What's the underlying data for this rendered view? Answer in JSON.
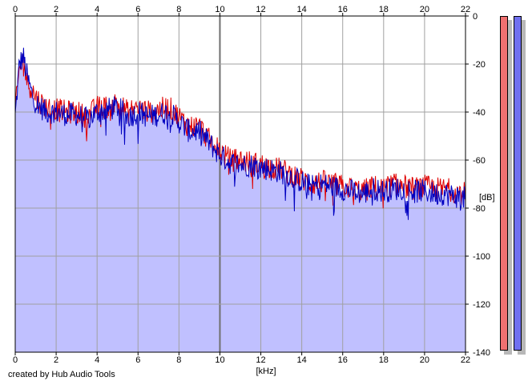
{
  "chart_data": {
    "type": "area",
    "title": "",
    "xlabel": "[kHz]",
    "ylabel": "[dB]",
    "xlim": [
      0,
      22
    ],
    "ylim": [
      -140,
      0
    ],
    "x_ticks": [
      0,
      2,
      4,
      6,
      8,
      10,
      12,
      14,
      16,
      18,
      20,
      22
    ],
    "y_ticks": [
      0,
      -20,
      -40,
      -60,
      -80,
      -100,
      -120,
      -140
    ],
    "grid": true,
    "fill_color": "#c0c0ff",
    "series": [
      {
        "color": "#e00000",
        "x": [
          0,
          0.2,
          0.4,
          0.6,
          0.8,
          1,
          1.5,
          2,
          2.5,
          3,
          3.5,
          4,
          4.5,
          5,
          5.5,
          6,
          6.5,
          7,
          7.5,
          8,
          8.5,
          9,
          9.5,
          10,
          10.5,
          11,
          11.5,
          12,
          12.5,
          13,
          13.5,
          14,
          14.5,
          15,
          15.5,
          16,
          16.5,
          17,
          17.5,
          18,
          18.5,
          19,
          19.5,
          20,
          20.5,
          21,
          21.5,
          22
        ],
        "values": [
          -40,
          -22,
          -18,
          -28,
          -30,
          -34,
          -38,
          -39,
          -40,
          -40,
          -42,
          -38,
          -38,
          -36,
          -40,
          -38,
          -40,
          -39,
          -38,
          -42,
          -46,
          -46,
          -52,
          -56,
          -60,
          -60,
          -61,
          -62,
          -63,
          -64,
          -66,
          -68,
          -70,
          -69,
          -70,
          -71,
          -72,
          -73,
          -71,
          -72,
          -70,
          -71,
          -72,
          -71,
          -72,
          -72,
          -73,
          -74
        ]
      },
      {
        "color": "#0000c0",
        "x": [
          0,
          0.2,
          0.4,
          0.6,
          0.8,
          1,
          1.5,
          2,
          2.5,
          3,
          3.5,
          4,
          4.5,
          5,
          5.5,
          6,
          6.5,
          7,
          7.5,
          8,
          8.5,
          9,
          9.5,
          10,
          10.5,
          11,
          11.5,
          12,
          12.5,
          13,
          13.5,
          14,
          14.5,
          15,
          15.5,
          16,
          16.5,
          17,
          17.5,
          18,
          18.5,
          19,
          19.5,
          20,
          20.5,
          21,
          21.5,
          22
        ],
        "values": [
          -42,
          -20,
          -17,
          -26,
          -32,
          -36,
          -40,
          -40,
          -41,
          -41,
          -43,
          -40,
          -39,
          -38,
          -42,
          -40,
          -42,
          -41,
          -40,
          -44,
          -48,
          -48,
          -53,
          -58,
          -61,
          -62,
          -62,
          -63,
          -64,
          -65,
          -67,
          -69,
          -71,
          -70,
          -71,
          -72,
          -73,
          -74,
          -72,
          -73,
          -72,
          -72,
          -73,
          -73,
          -74,
          -74,
          -75,
          -76
        ]
      }
    ]
  },
  "meters": {
    "left_color": "#f07070",
    "right_color": "#7070f0"
  },
  "footer": {
    "credit": "created by Hub Audio Tools"
  }
}
